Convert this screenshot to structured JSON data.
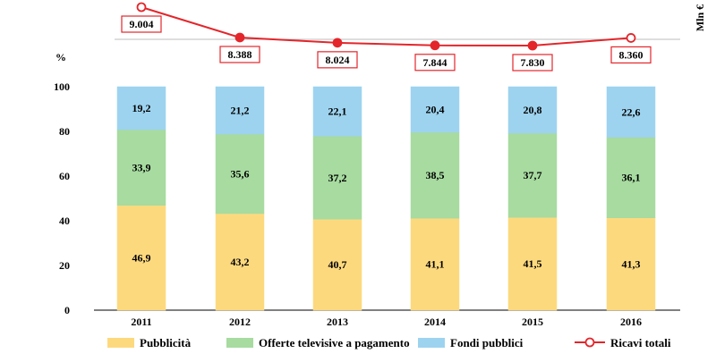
{
  "chart_data": {
    "type": "bar",
    "subtype": "stacked-100-with-line",
    "categories": [
      "2011",
      "2012",
      "2013",
      "2014",
      "2015",
      "2016"
    ],
    "y_axis": {
      "label": "%",
      "min": 0,
      "max": 100,
      "ticks": [
        "0",
        "20",
        "40",
        "60",
        "80",
        "100"
      ]
    },
    "series": [
      {
        "name": "Pubblicità",
        "color": "#fdd97e",
        "values": [
          46.9,
          43.2,
          40.7,
          41.1,
          41.5,
          41.3
        ],
        "labels": [
          "46,9",
          "43,2",
          "40,7",
          "41,1",
          "41,5",
          "41,3"
        ]
      },
      {
        "name": "Offerte televisive a pagamento",
        "color": "#a7dba0",
        "values": [
          33.9,
          35.6,
          37.2,
          38.5,
          37.7,
          36.1
        ],
        "labels": [
          "33,9",
          "35,6",
          "37,2",
          "38,5",
          "37,7",
          "36,1"
        ]
      },
      {
        "name": "Fondi pubblici",
        "color": "#9dd3ef",
        "values": [
          19.2,
          21.2,
          22.1,
          20.4,
          20.8,
          22.6
        ],
        "labels": [
          "19,2",
          "21,2",
          "22,1",
          "20,4",
          "20,8",
          "22,6"
        ]
      }
    ],
    "line": {
      "name": "Ricavi totali",
      "axis_label": "Mln €",
      "color": "#e3262b",
      "values": [
        9004,
        8388,
        8024,
        7844,
        7830,
        8360
      ],
      "labels": [
        "9.004",
        "8.388",
        "8.024",
        "7.844",
        "7.830",
        "8.360"
      ]
    },
    "legend_position": "bottom",
    "grid": false
  }
}
